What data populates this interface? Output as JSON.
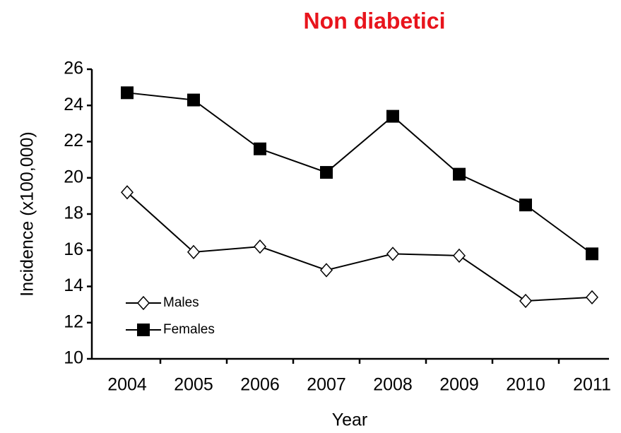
{
  "chart_data": {
    "type": "line",
    "title": "Non diabetici",
    "x_label": "Year",
    "y_label": "Incidence (x100,000)",
    "categories": [
      "2004",
      "2005",
      "2006",
      "2007",
      "2008",
      "2009",
      "2010",
      "2011"
    ],
    "series": [
      {
        "name": "Males",
        "color": "#000000",
        "marker": "diamond",
        "values": [
          19.2,
          15.9,
          16.2,
          14.9,
          15.8,
          15.7,
          13.2,
          13.4
        ]
      },
      {
        "name": "Females",
        "color": "#000000",
        "marker": "square",
        "values": [
          24.7,
          24.3,
          21.6,
          20.3,
          23.4,
          20.2,
          18.5,
          15.8
        ]
      }
    ],
    "ylim": [
      10,
      26
    ],
    "yticks": [
      10,
      12,
      14,
      16,
      18,
      20,
      22,
      24,
      26
    ],
    "grid": false,
    "legend": "lower left"
  }
}
